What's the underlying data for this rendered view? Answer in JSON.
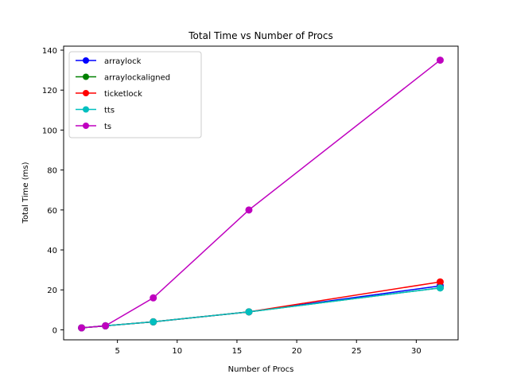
{
  "chart_data": {
    "type": "line",
    "title": "Total Time vs Number of Procs",
    "xlabel": "Number of Procs",
    "ylabel": "Total Time (ms)",
    "xlim": [
      0.5,
      33.5
    ],
    "ylim": [
      -5,
      142
    ],
    "xticks": [
      5,
      10,
      15,
      20,
      25,
      30
    ],
    "yticks": [
      0,
      20,
      40,
      60,
      80,
      100,
      120,
      140
    ],
    "grid": false,
    "legend_position": "top-left",
    "x": [
      2,
      4,
      8,
      16,
      32
    ],
    "series": [
      {
        "name": "arraylock",
        "color": "#0000ff",
        "values": [
          1,
          2,
          4,
          9,
          22
        ]
      },
      {
        "name": "arraylockaligned",
        "color": "#008000",
        "values": [
          1,
          2,
          4,
          9,
          21
        ]
      },
      {
        "name": "ticketlock",
        "color": "#ff0000",
        "values": [
          1,
          2,
          4,
          9,
          24
        ]
      },
      {
        "name": "tts",
        "color": "#00bfbf",
        "values": [
          1,
          2,
          4,
          9,
          21
        ]
      },
      {
        "name": "ts",
        "color": "#bf00bf",
        "values": [
          1,
          2,
          16,
          60,
          135
        ]
      }
    ]
  }
}
